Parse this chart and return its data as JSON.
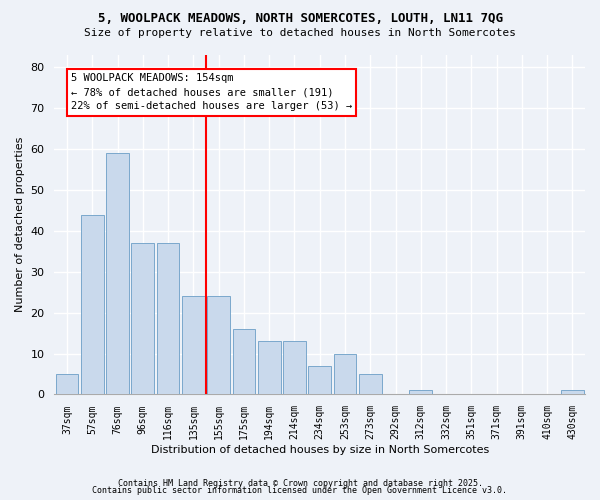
{
  "title": "5, WOOLPACK MEADOWS, NORTH SOMERCOTES, LOUTH, LN11 7QG",
  "subtitle": "Size of property relative to detached houses in North Somercotes",
  "xlabel": "Distribution of detached houses by size in North Somercotes",
  "ylabel": "Number of detached properties",
  "categories": [
    "37sqm",
    "57sqm",
    "76sqm",
    "96sqm",
    "116sqm",
    "135sqm",
    "155sqm",
    "175sqm",
    "194sqm",
    "214sqm",
    "234sqm",
    "253sqm",
    "273sqm",
    "292sqm",
    "312sqm",
    "332sqm",
    "351sqm",
    "371sqm",
    "391sqm",
    "410sqm",
    "430sqm"
  ],
  "values": [
    5,
    44,
    59,
    37,
    37,
    24,
    24,
    16,
    13,
    13,
    7,
    10,
    5,
    0,
    1,
    0,
    0,
    0,
    0,
    0,
    1
  ],
  "bar_color": "#c9d9ec",
  "bar_edge_color": "#7aa8cc",
  "subject_label": "5 WOOLPACK MEADOWS: 154sqm",
  "annotation_line1": "← 78% of detached houses are smaller (191)",
  "annotation_line2": "22% of semi-detached houses are larger (53) →",
  "ylim": [
    0,
    83
  ],
  "yticks": [
    0,
    10,
    20,
    30,
    40,
    50,
    60,
    70,
    80
  ],
  "background_color": "#eef2f8",
  "grid_color": "#ffffff",
  "footer1": "Contains HM Land Registry data © Crown copyright and database right 2025.",
  "footer2": "Contains public sector information licensed under the Open Government Licence v3.0."
}
